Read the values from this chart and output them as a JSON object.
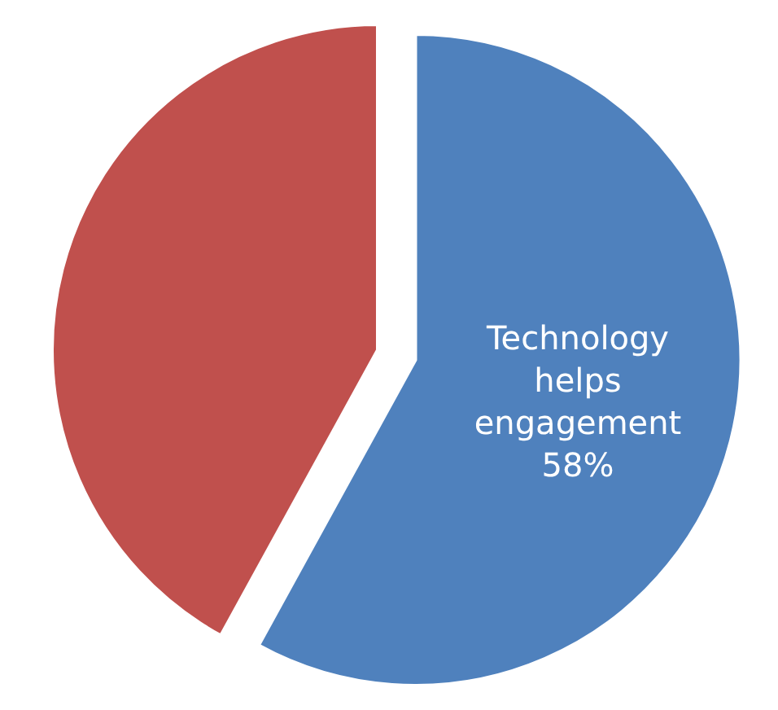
{
  "chart_data": {
    "type": "pie",
    "categories": [
      "Technology helps engagement",
      null
    ],
    "values": [
      58,
      42
    ],
    "colors": [
      "#4f81bd",
      "#c0504d"
    ],
    "value_labels": [
      "58%",
      null
    ]
  }
}
